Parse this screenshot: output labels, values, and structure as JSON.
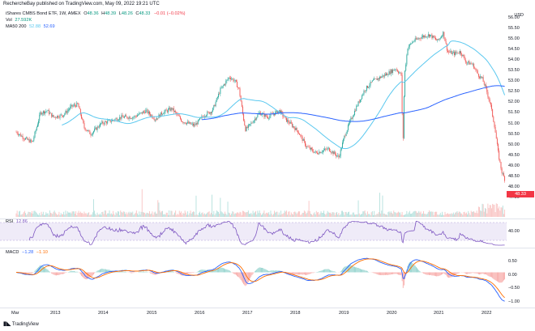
{
  "header": {
    "attribution": "RechercheBay published on TradingView.com, May 09, 2022 19:21 UTC",
    "symbol_line": "iShares CMBS Bond ETF, 1W, AMEX",
    "ohlc": [
      {
        "k": "O",
        "v": "48.36"
      },
      {
        "k": "H",
        "v": "48.39"
      },
      {
        "k": "L",
        "v": "48.26"
      },
      {
        "k": "C",
        "v": "48.33"
      }
    ],
    "change": "−0.01 (−0.02%)",
    "volume_label": "Vol",
    "volume_value": "27.592K",
    "ma_label": "MA50 200",
    "ma_values": [
      "52.88",
      "52.69"
    ]
  },
  "price_axis": {
    "unit": "USD",
    "labels": [
      "56.00",
      "55.50",
      "55.00",
      "54.50",
      "54.00",
      "53.50",
      "53.00",
      "52.50",
      "52.00",
      "51.50",
      "51.00",
      "50.50",
      "50.00",
      "49.50",
      "49.00",
      "48.50",
      "48.00",
      "47.50"
    ],
    "last_price": "48.33",
    "last_price_color": "#f23645"
  },
  "rsi": {
    "label": "RSI",
    "value": "12.86",
    "axis_labels": [
      "40.00"
    ]
  },
  "macd": {
    "label": "MACD",
    "values": [
      "−1.28",
      "−1.10"
    ],
    "axis_labels": [
      "0.50",
      "0.00",
      "−0.50",
      "−1.00"
    ]
  },
  "time_axis": {
    "labels": [
      "Mar",
      "2013",
      "2014",
      "2015",
      "2016",
      "2017",
      "2018",
      "2019",
      "2020",
      "2021",
      "2022"
    ]
  },
  "footer": {
    "logo_text": "TradingView"
  },
  "colors": {
    "up": "#26a69a",
    "down": "#ef5350",
    "ma50": "#5ac8ef",
    "ma200": "#2962ff",
    "rsi_line": "#7e57c2",
    "macd_line": "#2962ff",
    "signal_line": "#ff6d00"
  },
  "chart_data": {
    "type": "candlestick",
    "x": [
      "Mar",
      "2013",
      "2014",
      "2015",
      "2016",
      "2017",
      "2018",
      "2019",
      "2020",
      "2021",
      "2022"
    ],
    "close_by_year_approx": [
      50.6,
      51.3,
      50.8,
      51.3,
      51.0,
      51.8,
      50.4,
      49.8,
      53.5,
      54.8,
      48.3
    ],
    "ma50_last": 52.88,
    "ma200_last": 52.69,
    "ylim": [
      47.5,
      56.0
    ],
    "rsi_last": 12.86,
    "macd_last": -1.28,
    "signal_last": -1.1
  }
}
